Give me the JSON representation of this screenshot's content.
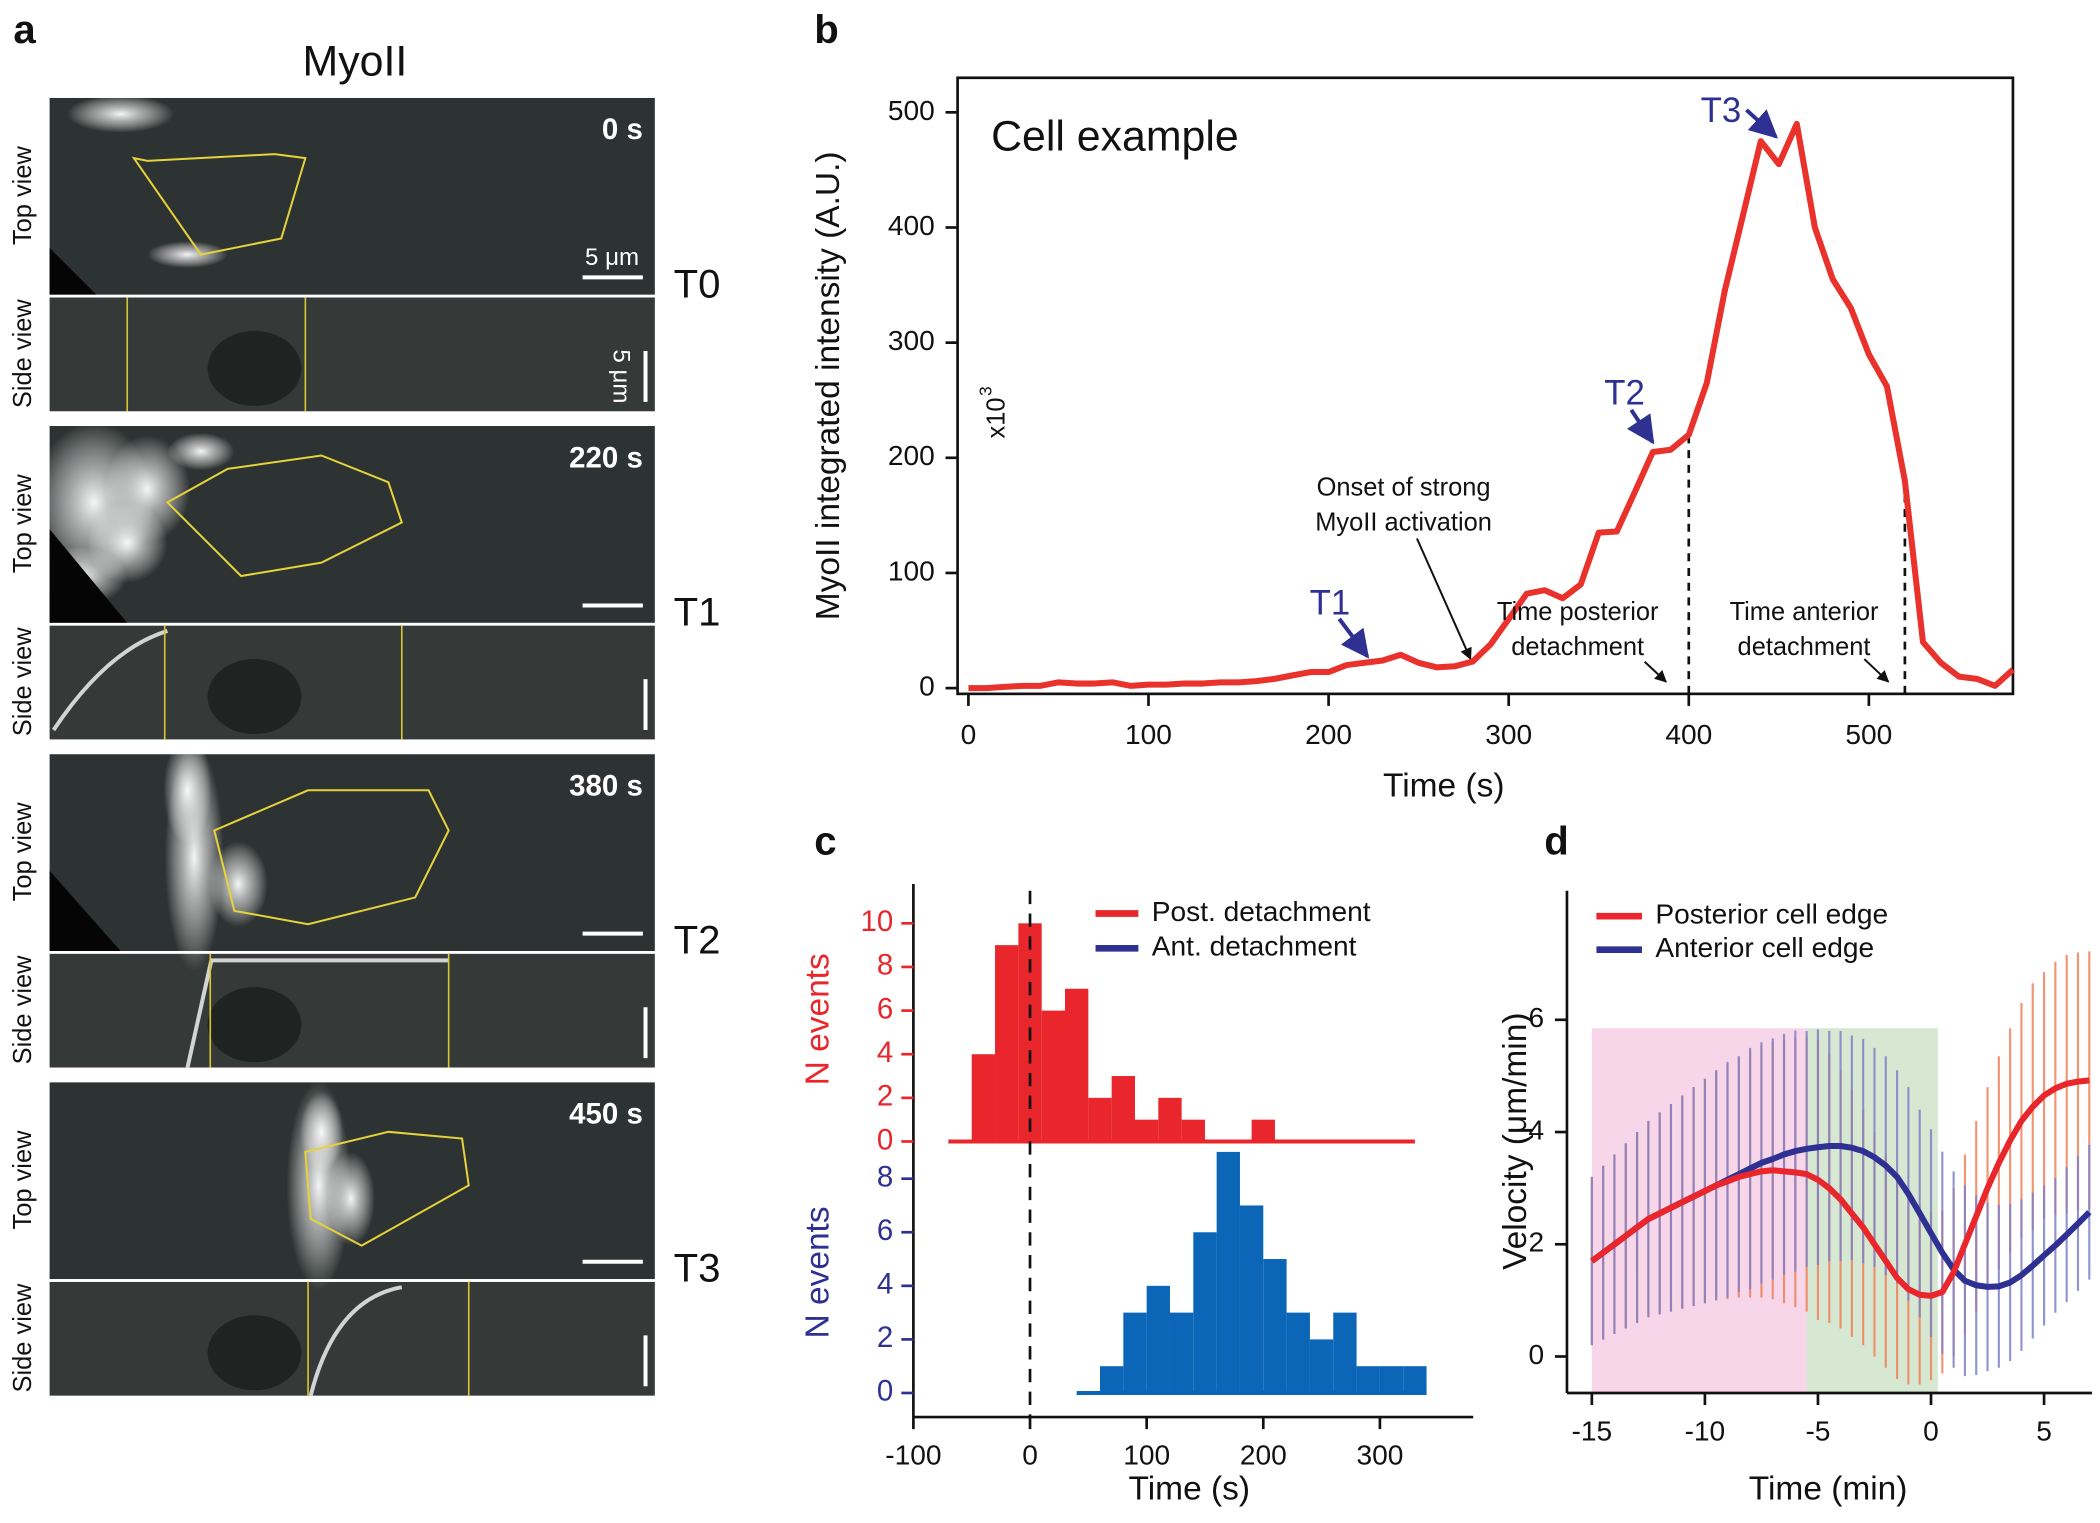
{
  "panel_a": {
    "panel": "a",
    "title": "MyoII",
    "top_label": "Top view",
    "side_label": "Side view",
    "scale_top_label": "5 μm",
    "scale_side_label": "5 μm",
    "rows": [
      {
        "time": "0 s",
        "stage": "T0"
      },
      {
        "time": "220 s",
        "stage": "T1"
      },
      {
        "time": "380 s",
        "stage": "T2"
      },
      {
        "time": "450 s",
        "stage": "T3"
      }
    ]
  },
  "chart_data": [
    {
      "panel": "b",
      "type": "line",
      "xlabel": "Time (s)",
      "ylabel": "MyoII integrated intensity (A.U.)",
      "annotation": "Cell example",
      "multiplier": "x10",
      "multiplier_exponent": "3",
      "stage_labels": [
        "T1",
        "T2",
        "T3"
      ],
      "notes": [
        [
          "Onset of strong",
          "MyoII activation"
        ],
        [
          "Time posterior",
          "detachment"
        ],
        [
          "Time anterior",
          "detachment"
        ]
      ],
      "vlines": [
        400,
        520
      ],
      "xlim": [
        -6,
        580
      ],
      "ylim": [
        -5,
        530
      ],
      "xticks": [
        0,
        100,
        200,
        300,
        400,
        500
      ],
      "yticks": [
        0,
        100,
        200,
        300,
        400,
        500
      ],
      "x": [
        0,
        10,
        20,
        30,
        40,
        50,
        60,
        70,
        80,
        90,
        100,
        110,
        120,
        130,
        140,
        150,
        160,
        170,
        180,
        190,
        200,
        210,
        220,
        230,
        240,
        250,
        260,
        270,
        280,
        290,
        300,
        310,
        320,
        330,
        340,
        350,
        360,
        370,
        380,
        390,
        400,
        410,
        420,
        430,
        440,
        450,
        460,
        470,
        480,
        490,
        500,
        510,
        520,
        530,
        540,
        550,
        560,
        570,
        580
      ],
      "series": [
        {
          "color": "#e8322b",
          "values": [
            0,
            0,
            1,
            2,
            2,
            5,
            4,
            4,
            5,
            2,
            3,
            3,
            4,
            4,
            5,
            5,
            6,
            8,
            11,
            14,
            14,
            20,
            22,
            24,
            29,
            22,
            18,
            19,
            23,
            38,
            60,
            82,
            85,
            78,
            90,
            135,
            136,
            170,
            205,
            207,
            220,
            265,
            345,
            410,
            475,
            455,
            490,
            400,
            355,
            330,
            290,
            262,
            180,
            40,
            22,
            10,
            8,
            2,
            16
          ]
        }
      ]
    },
    {
      "panel": "c",
      "type": "histogram",
      "xlabel": "Time (s)",
      "xlim": [
        -100,
        380
      ],
      "xticks": [
        -100,
        0,
        100,
        200,
        300
      ],
      "vline": 0,
      "legend": "top-right",
      "series": [
        {
          "name": "Post. detachment",
          "color": "#e8262b",
          "label_color": "#e8262b",
          "ylabel": "N events",
          "ylim": [
            -0.6,
            11.8
          ],
          "yticks": [
            0,
            2,
            4,
            6,
            8,
            10
          ],
          "bins": [
            -70,
            -50,
            -30,
            -10,
            10,
            30,
            50,
            70,
            90,
            110,
            130,
            150,
            170,
            190,
            210,
            230,
            250,
            270,
            290,
            310,
            330
          ],
          "values": [
            0,
            4,
            9,
            10,
            6,
            7,
            2,
            3,
            1,
            2,
            1,
            0,
            0,
            1,
            0,
            0,
            0,
            0,
            0,
            0
          ]
        },
        {
          "name": "Ant. detachment",
          "color": "#0b66b8",
          "label_color": "#2e3192",
          "ylabel": "N events",
          "ylim": [
            -0.9,
            9.9
          ],
          "yticks": [
            0,
            2,
            4,
            6,
            8
          ],
          "bins": [
            40,
            60,
            80,
            100,
            120,
            140,
            160,
            180,
            200,
            220,
            240,
            260,
            280,
            300,
            320,
            340
          ],
          "values": [
            0,
            1,
            3,
            4,
            3,
            6,
            9,
            7,
            5,
            3,
            2,
            3,
            1,
            1,
            1
          ]
        }
      ]
    },
    {
      "panel": "d",
      "type": "line",
      "xlabel": "Time (min)",
      "ylabel": "Velocity (μm/min)",
      "legend": "top-left",
      "xlim": [
        -16.1,
        7
      ],
      "ylim": [
        -0.65,
        8.3
      ],
      "xticks": [
        -15,
        -10,
        -5,
        0,
        5
      ],
      "yticks": [
        0,
        2,
        4,
        6
      ],
      "regions": [
        {
          "xrange": [
            -15,
            -5.5
          ],
          "yrange": [
            -0.65,
            5.85
          ],
          "color": "#f7cfe6"
        },
        {
          "xrange": [
            -5.5,
            0.3
          ],
          "yrange": [
            -0.65,
            5.85
          ],
          "color": "#cfe3ca"
        }
      ],
      "x": [
        -15,
        -14.5,
        -14,
        -13.5,
        -13,
        -12.5,
        -12,
        -11.5,
        -11,
        -10.5,
        -10,
        -9.5,
        -9,
        -8.5,
        -8,
        -7.5,
        -7,
        -6.5,
        -6,
        -5.5,
        -5,
        -4.5,
        -4,
        -3.5,
        -3,
        -2.5,
        -2,
        -1.5,
        -1,
        -0.5,
        0,
        0.5,
        1,
        1.5,
        2,
        2.5,
        3,
        3.5,
        4,
        4.5,
        5,
        5.5,
        6,
        6.5,
        7
      ],
      "series": [
        {
          "name": "Posterior cell edge",
          "color": "#e8262b",
          "error_color": "#f0815a",
          "values": [
            1.7,
            1.85,
            2.0,
            2.15,
            2.3,
            2.45,
            2.55,
            2.65,
            2.75,
            2.85,
            2.95,
            3.05,
            3.12,
            3.2,
            3.25,
            3.3,
            3.32,
            3.3,
            3.28,
            3.25,
            3.15,
            3.0,
            2.8,
            2.55,
            2.3,
            2.0,
            1.7,
            1.4,
            1.2,
            1.1,
            1.08,
            1.15,
            1.5,
            2.0,
            2.5,
            3.0,
            3.45,
            3.85,
            4.2,
            4.45,
            4.65,
            4.78,
            4.86,
            4.9,
            4.92
          ],
          "errors": [
            1.5,
            1.55,
            1.6,
            1.65,
            1.7,
            1.75,
            1.8,
            1.85,
            1.9,
            1.95,
            2.0,
            2.05,
            2.1,
            2.15,
            2.2,
            2.25,
            2.3,
            2.35,
            2.4,
            2.45,
            2.5,
            2.4,
            2.3,
            2.2,
            2.1,
            2.0,
            1.9,
            1.8,
            1.7,
            1.6,
            1.5,
            1.45,
            1.5,
            1.6,
            1.7,
            1.8,
            1.9,
            2.0,
            2.1,
            2.2,
            2.2,
            2.25,
            2.3,
            2.3,
            2.3
          ]
        },
        {
          "name": "Anterior cell edge",
          "color": "#2e3192",
          "error_color": "#7f82c8",
          "values": [
            1.7,
            1.85,
            2.0,
            2.15,
            2.3,
            2.45,
            2.55,
            2.65,
            2.75,
            2.85,
            2.95,
            3.05,
            3.15,
            3.25,
            3.35,
            3.45,
            3.52,
            3.6,
            3.66,
            3.7,
            3.73,
            3.75,
            3.75,
            3.72,
            3.66,
            3.55,
            3.4,
            3.2,
            2.9,
            2.55,
            2.2,
            1.85,
            1.55,
            1.35,
            1.27,
            1.24,
            1.25,
            1.32,
            1.45,
            1.62,
            1.8,
            1.98,
            2.17,
            2.37,
            2.57
          ],
          "errors": [
            1.5,
            1.55,
            1.6,
            1.65,
            1.7,
            1.75,
            1.8,
            1.85,
            1.9,
            1.95,
            2.0,
            2.05,
            2.1,
            2.1,
            2.15,
            2.15,
            2.15,
            2.15,
            2.15,
            2.1,
            2.1,
            2.05,
            2.05,
            2.0,
            2.0,
            1.95,
            1.95,
            1.9,
            1.9,
            1.85,
            1.85,
            1.8,
            1.75,
            1.7,
            1.6,
            1.5,
            1.45,
            1.4,
            1.35,
            1.3,
            1.25,
            1.2,
            1.2,
            1.2,
            1.2
          ]
        }
      ]
    }
  ]
}
